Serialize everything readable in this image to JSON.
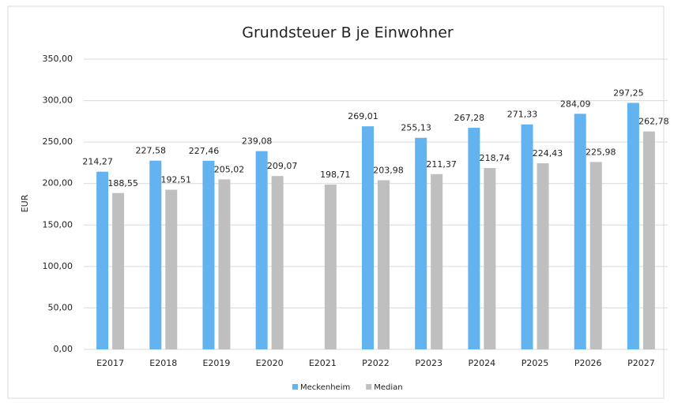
{
  "chart_data": {
    "type": "bar",
    "title": "Grundsteuer B je Einwohner",
    "y_label": "EUR",
    "categories": [
      "E2017",
      "E2018",
      "E2019",
      "E2020",
      "E2021",
      "P2022",
      "P2023",
      "P2024",
      "P2025",
      "P2026",
      "P2027"
    ],
    "series": [
      {
        "name": "Meckenheim",
        "color": "#63b3f0",
        "values": [
          214.27,
          227.58,
          227.46,
          239.08,
          null,
          269.01,
          255.13,
          267.28,
          271.33,
          284.09,
          297.25
        ],
        "value_labels": [
          "214,27",
          "227,58",
          "227,46",
          "239,08",
          null,
          "269,01",
          "255,13",
          "267,28",
          "271,33",
          "284,09",
          "297,25"
        ]
      },
      {
        "name": "Median",
        "color": "#bfbfbf",
        "values": [
          188.55,
          192.51,
          205.02,
          209.07,
          198.71,
          203.98,
          211.37,
          218.74,
          224.43,
          225.98,
          262.78
        ],
        "value_labels": [
          "188,55",
          "192,51",
          "205,02",
          "209,07",
          "198,71",
          "203,98",
          "211,37",
          "218,74",
          "224,43",
          "225,98",
          "262,78"
        ]
      }
    ],
    "ylim": [
      0,
      350
    ],
    "yticks": [
      {
        "value": 0,
        "label": "0,00"
      },
      {
        "value": 50,
        "label": "50,00"
      },
      {
        "value": 100,
        "label": "100,00"
      },
      {
        "value": 150,
        "label": "150,00"
      },
      {
        "value": 200,
        "label": "200,00"
      },
      {
        "value": 250,
        "label": "250,00"
      },
      {
        "value": 300,
        "label": "300,00"
      },
      {
        "value": 350,
        "label": "350,00"
      }
    ],
    "grid": true,
    "legend": "bottom"
  }
}
